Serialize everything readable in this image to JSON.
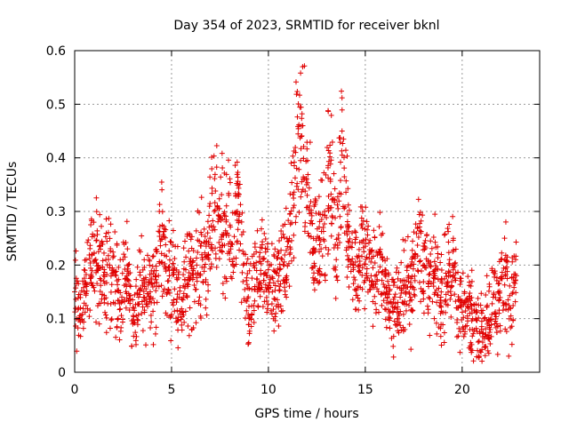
{
  "chart_data": {
    "type": "scatter",
    "title": "Day 354 of 2023, SRMTID for receiver bknl",
    "xlabel": "GPS time / hours",
    "ylabel": "SRMTID / TECUs",
    "xlim": [
      0,
      24
    ],
    "ylim": [
      0,
      0.6
    ],
    "x_ticks": [
      0,
      5,
      10,
      15,
      20
    ],
    "x_tick_labels": [
      "0",
      "5",
      "10",
      "15",
      "20"
    ],
    "y_ticks": [
      0,
      0.1,
      0.2,
      0.3,
      0.4,
      0.5,
      0.6
    ],
    "y_tick_labels": [
      "0",
      "0.1",
      "0.2",
      "0.3",
      "0.4",
      "0.5",
      "0.6"
    ],
    "grid": true,
    "marker": "+",
    "series": [
      {
        "name": "SRMTID",
        "color": "#e00000",
        "x": [
          0.0,
          0.3,
          0.6,
          0.9,
          1.2,
          1.5,
          1.8,
          2.1,
          2.4,
          2.7,
          3.0,
          3.3,
          3.6,
          3.9,
          4.2,
          4.5,
          4.8,
          5.1,
          5.4,
          5.7,
          6.0,
          6.3,
          6.6,
          6.9,
          7.2,
          7.5,
          7.8,
          8.1,
          8.4,
          8.7,
          9.0,
          9.3,
          9.6,
          9.9,
          10.2,
          10.5,
          10.8,
          11.1,
          11.4,
          11.7,
          12.0,
          12.3,
          12.6,
          12.9,
          13.2,
          13.5,
          13.8,
          14.1,
          14.4,
          14.7,
          15.0,
          15.3,
          15.6,
          15.9,
          16.2,
          16.5,
          16.8,
          17.1,
          17.4,
          17.7,
          18.0,
          18.3,
          18.6,
          18.9,
          19.2,
          19.5,
          19.8,
          20.1,
          20.4,
          20.7,
          21.0,
          21.3,
          21.6,
          21.9,
          22.2,
          22.5,
          22.8
        ],
        "y": [
          0.15,
          0.12,
          0.16,
          0.22,
          0.19,
          0.17,
          0.2,
          0.15,
          0.13,
          0.18,
          0.09,
          0.14,
          0.16,
          0.15,
          0.18,
          0.25,
          0.17,
          0.19,
          0.14,
          0.16,
          0.18,
          0.2,
          0.21,
          0.22,
          0.3,
          0.29,
          0.26,
          0.24,
          0.3,
          0.2,
          0.1,
          0.16,
          0.19,
          0.18,
          0.15,
          0.17,
          0.2,
          0.22,
          0.41,
          0.44,
          0.33,
          0.23,
          0.25,
          0.3,
          0.36,
          0.21,
          0.45,
          0.27,
          0.2,
          0.19,
          0.24,
          0.18,
          0.17,
          0.21,
          0.13,
          0.12,
          0.14,
          0.15,
          0.16,
          0.27,
          0.2,
          0.17,
          0.18,
          0.14,
          0.16,
          0.2,
          0.12,
          0.13,
          0.11,
          0.1,
          0.08,
          0.09,
          0.14,
          0.11,
          0.21,
          0.12,
          0.18
        ]
      }
    ],
    "notes": "Dense cloud of several thousand '+' markers in the original; y values listed are representative local levels per 0.3 h."
  }
}
